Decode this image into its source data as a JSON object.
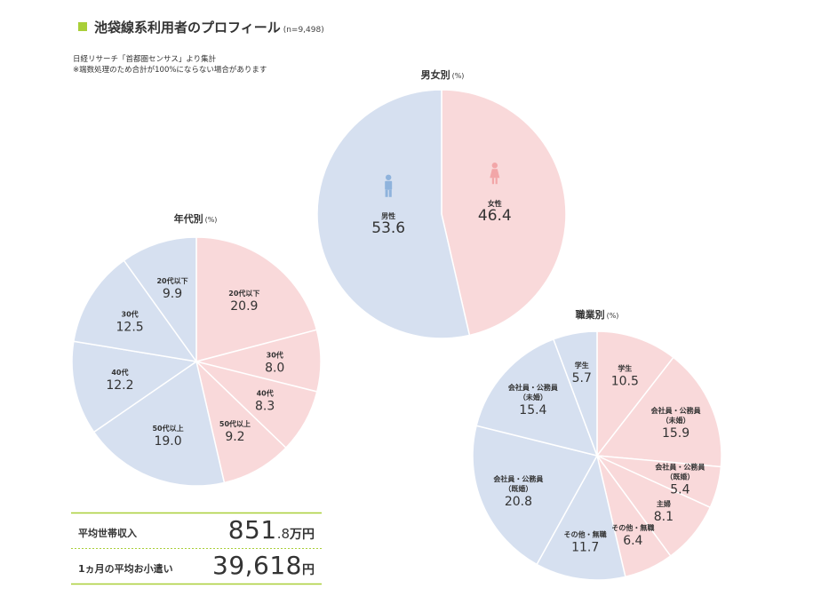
{
  "header": {
    "title": "池袋線系利用者のプロフィール",
    "sample_note": "(n=9,498)",
    "source": "日経リサーチ「首都圏センサス」より集計",
    "rounding_note": "※端数処理のため合計が100%にならない場合があります"
  },
  "colors": {
    "accent": "#a9cf38",
    "pink": "#f9d9da",
    "blue": "#d6e0f0",
    "male_icon": "#8fb3dc",
    "female_icon": "#f2a6a8"
  },
  "chart_data": [
    {
      "id": "gender",
      "type": "pie",
      "title": "男女別",
      "unit": "(%)",
      "slices": [
        {
          "label": "女性",
          "value": 46.4,
          "value_text": "46.4",
          "color": "pink",
          "icon": "female-icon"
        },
        {
          "label": "男性",
          "value": 53.6,
          "value_text": "53.6",
          "color": "blue",
          "icon": "male-icon"
        }
      ]
    },
    {
      "id": "age",
      "type": "pie",
      "title": "年代別",
      "unit": "(%)",
      "slices": [
        {
          "label": "20代以下",
          "value": 20.9,
          "value_text": "20.9",
          "color": "pink"
        },
        {
          "label": "30代",
          "value": 8.0,
          "value_text": "8.0",
          "color": "pink"
        },
        {
          "label": "40代",
          "value": 8.3,
          "value_text": "8.3",
          "color": "pink"
        },
        {
          "label": "50代以上",
          "value": 9.2,
          "value_text": "9.2",
          "color": "pink"
        },
        {
          "label": "50代以上",
          "value": 19.0,
          "value_text": "19.0",
          "color": "blue"
        },
        {
          "label": "40代",
          "value": 12.2,
          "value_text": "12.2",
          "color": "blue"
        },
        {
          "label": "30代",
          "value": 12.5,
          "value_text": "12.5",
          "color": "blue"
        },
        {
          "label": "20代以下",
          "value": 9.9,
          "value_text": "9.9",
          "color": "blue"
        }
      ]
    },
    {
      "id": "occupation",
      "type": "pie",
      "title": "職業別",
      "unit": "(%)",
      "slices": [
        {
          "label": "学生",
          "value": 10.5,
          "value_text": "10.5",
          "color": "pink"
        },
        {
          "label": "会社員・公務員\n（未婚）",
          "value": 15.9,
          "value_text": "15.9",
          "color": "pink"
        },
        {
          "label": "会社員・公務員\n（既婚）",
          "value": 5.4,
          "value_text": "5.4",
          "color": "pink"
        },
        {
          "label": "主婦",
          "value": 8.1,
          "value_text": "8.1",
          "color": "pink"
        },
        {
          "label": "その他・無職",
          "value": 6.4,
          "value_text": "6.4",
          "color": "pink"
        },
        {
          "label": "その他・無職",
          "value": 11.7,
          "value_text": "11.7",
          "color": "blue"
        },
        {
          "label": "会社員・公務員\n（既婚）",
          "value": 20.8,
          "value_text": "20.8",
          "color": "blue"
        },
        {
          "label": "会社員・公務員\n（未婚）",
          "value": 15.4,
          "value_text": "15.4",
          "color": "blue"
        },
        {
          "label": "学生",
          "value": 5.7,
          "value_text": "5.7",
          "color": "blue"
        }
      ]
    }
  ],
  "income": {
    "household": {
      "label": "平均世帯収入",
      "value_int": "851",
      "value_dec": ".8",
      "unit": "万円"
    },
    "allowance": {
      "label": "1ヵ月の平均お小遣い",
      "value": "39,618",
      "unit": "円"
    }
  }
}
